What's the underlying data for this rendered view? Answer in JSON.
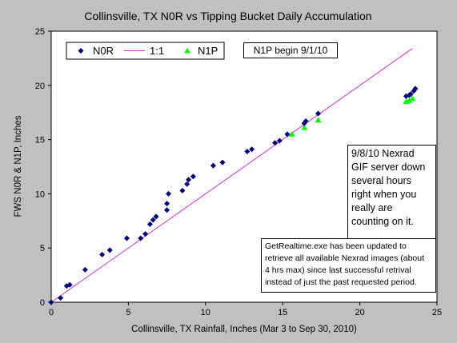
{
  "colors": {
    "background": "#c0c0c0",
    "plot_area": "#ffffff",
    "n0r_series": "#000080",
    "one_to_one_line": "#cc33cc",
    "n1p_series": "#00ff00"
  },
  "annotations": {
    "n1p_begin": "N1P begin 9/1/10",
    "server_down_lines": [
      "9/8/10 Nexrad",
      "GIF server down",
      "several hours",
      "right when you",
      "really are",
      "counting on it."
    ],
    "getrealtime_lines": [
      "GetRealtime.exe has been updated to",
      "retrieve all available Nexrad images (about",
      "4 hrs max) since last successful retrival",
      "instead of just the past requested period."
    ]
  },
  "chart_data": {
    "type": "scatter",
    "title": "Collinsville, TX N0R vs Tipping Bucket Daily Accumulation",
    "xlabel": "Collinsville, TX Rainfall, Inches (Mar 3 to Sep 30, 2010)",
    "ylabel": "FWS N0R & N1P, Inches",
    "xlim": [
      0,
      25
    ],
    "ylim": [
      0,
      25
    ],
    "xticks": [
      0,
      5,
      10,
      15,
      20,
      25
    ],
    "yticks": [
      0,
      5,
      10,
      15,
      20,
      25
    ],
    "grid": false,
    "legend_position": "top-left",
    "series": [
      {
        "name": "N0R",
        "marker": "diamond",
        "points": [
          [
            0,
            0
          ],
          [
            0.6,
            0.4
          ],
          [
            1.0,
            1.5
          ],
          [
            1.2,
            1.6
          ],
          [
            2.2,
            3.0
          ],
          [
            3.3,
            4.4
          ],
          [
            3.8,
            4.8
          ],
          [
            4.9,
            5.9
          ],
          [
            5.8,
            5.9
          ],
          [
            6.1,
            6.3
          ],
          [
            6.4,
            7.2
          ],
          [
            6.6,
            7.6
          ],
          [
            6.8,
            7.9
          ],
          [
            7.5,
            8.5
          ],
          [
            7.5,
            9.1
          ],
          [
            7.6,
            10.0
          ],
          [
            8.5,
            10.3
          ],
          [
            8.8,
            10.9
          ],
          [
            8.9,
            11.3
          ],
          [
            9.2,
            11.6
          ],
          [
            10.5,
            12.6
          ],
          [
            11.1,
            12.9
          ],
          [
            12.7,
            13.9
          ],
          [
            13.0,
            14.1
          ],
          [
            14.5,
            14.7
          ],
          [
            14.8,
            14.9
          ],
          [
            15.3,
            15.5
          ],
          [
            16.4,
            16.5
          ],
          [
            16.5,
            16.7
          ],
          [
            17.3,
            17.4
          ],
          [
            23.0,
            19.0
          ],
          [
            23.2,
            19.1
          ],
          [
            23.3,
            19.2
          ],
          [
            23.5,
            19.5
          ],
          [
            23.6,
            19.7
          ]
        ]
      },
      {
        "name": "1:1",
        "type": "line",
        "points": [
          [
            0,
            0
          ],
          [
            23.4,
            23.4
          ]
        ]
      },
      {
        "name": "N1P",
        "marker": "triangle",
        "points": [
          [
            15.6,
            15.5
          ],
          [
            16.4,
            16.1
          ],
          [
            17.3,
            16.8
          ],
          [
            23.0,
            18.5
          ],
          [
            23.2,
            18.6
          ],
          [
            23.4,
            18.8
          ]
        ]
      }
    ]
  }
}
